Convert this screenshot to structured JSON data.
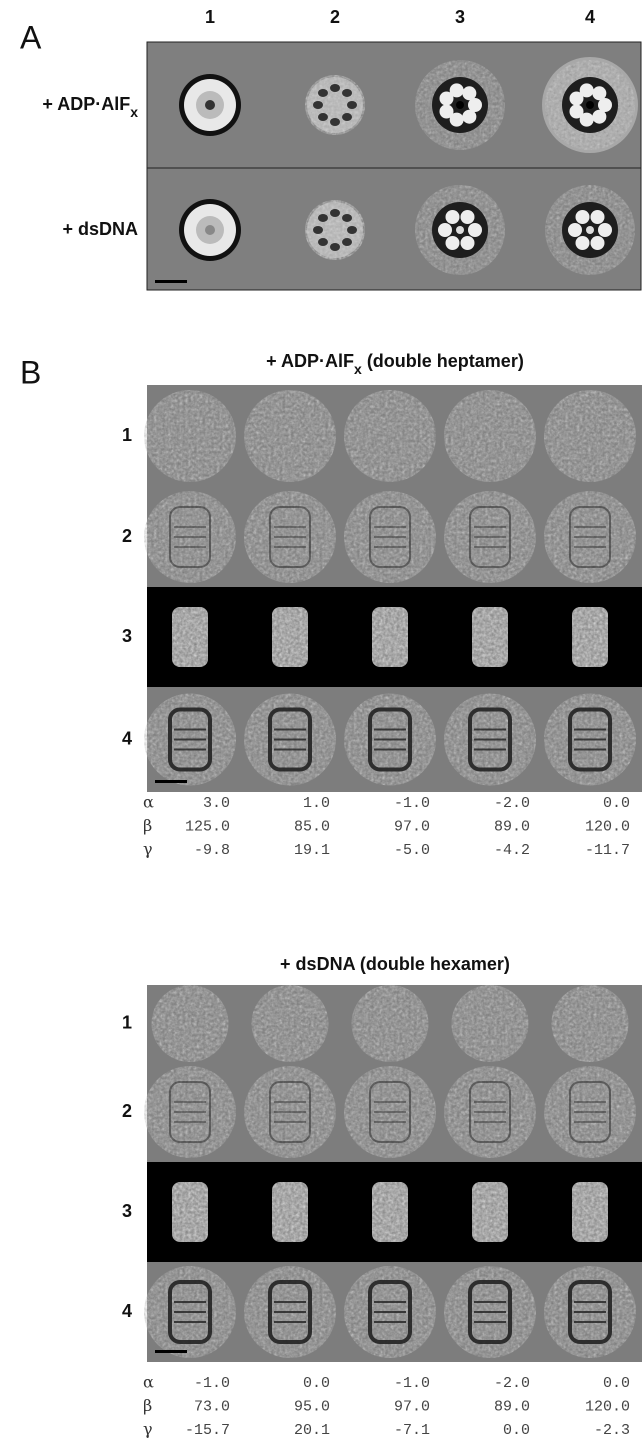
{
  "panel_a": {
    "label": "A",
    "columns": [
      "1",
      "2",
      "3",
      "4"
    ],
    "rows": [
      {
        "label": "+ ADP·AlF",
        "label_sub": "x"
      },
      {
        "label": "+ dsDNA"
      }
    ]
  },
  "panel_b": {
    "label": "B",
    "groups": [
      {
        "title": "+ ADP·AlF",
        "title_sub": "x",
        "title_suffix": " (double heptamer)",
        "rows": [
          "1",
          "2",
          "3",
          "4"
        ],
        "angles": [
          {
            "symbol": "α",
            "values": [
              "3.0",
              "1.0",
              "-1.0",
              "-2.0",
              "0.0"
            ]
          },
          {
            "symbol": "β",
            "values": [
              "125.0",
              "85.0",
              "97.0",
              "89.0",
              "120.0"
            ]
          },
          {
            "symbol": "γ",
            "values": [
              "-9.8",
              "19.1",
              "-5.0",
              "-4.2",
              "-11.7"
            ]
          }
        ]
      },
      {
        "title": "+ dsDNA (double hexamer)",
        "rows": [
          "1",
          "2",
          "3",
          "4"
        ],
        "angles": [
          {
            "symbol": "α",
            "values": [
              "-1.0",
              "0.0",
              "-1.0",
              "-2.0",
              "0.0"
            ]
          },
          {
            "symbol": "β",
            "values": [
              "73.0",
              "95.0",
              "97.0",
              "89.0",
              "120.0"
            ]
          },
          {
            "symbol": "γ",
            "values": [
              "-15.7",
              "20.1",
              "-7.1",
              "0.0",
              "-2.3"
            ]
          }
        ]
      }
    ]
  }
}
